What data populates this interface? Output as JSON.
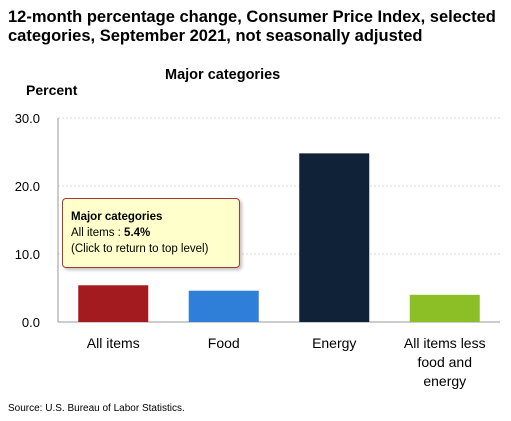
{
  "chart_data": {
    "type": "bar",
    "title": "12-month percentage change, Consumer Price Index, selected categories, September 2021, not seasonally adjusted",
    "subtitle": "Major categories",
    "ylabel": "Percent",
    "xlabel": "",
    "ylim": [
      0,
      30
    ],
    "yticks": [
      "0.0",
      "10.0",
      "20.0",
      "30.0"
    ],
    "ytick_values": [
      0,
      10,
      20,
      30
    ],
    "grid": true,
    "categories": [
      "All items",
      "Food",
      "Energy",
      "All items less food and energy"
    ],
    "category_lines": [
      [
        "All items"
      ],
      [
        "Food"
      ],
      [
        "Energy"
      ],
      [
        "All items less",
        "food and",
        "energy"
      ]
    ],
    "values": [
      5.4,
      4.6,
      24.8,
      4.0
    ],
    "colors": [
      "#a31a1f",
      "#2f7fd8",
      "#0f2238",
      "#8cbf26"
    ]
  },
  "tooltip": {
    "title": "Major categories",
    "label": "All items : ",
    "value": "5.4%",
    "hint": "(Click to return to top level)"
  },
  "source": "Source: U.S. Bureau of Labor Statistics."
}
